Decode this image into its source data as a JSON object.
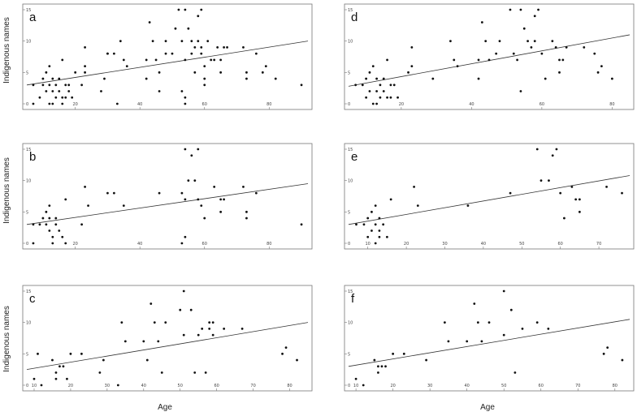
{
  "figure": {
    "ylabel": "Indigenous names",
    "xlabel": "Age"
  },
  "chart_data": [
    {
      "type": "scatter",
      "panel_label": "a",
      "xlim": [
        5,
        92
      ],
      "ylim": [
        0,
        15
      ],
      "xticks": [
        20,
        40,
        60,
        80
      ],
      "yticks": [
        0,
        5,
        10,
        15
      ],
      "trendline": {
        "x": [
          5,
          92
        ],
        "y": [
          3.0,
          10.0
        ]
      },
      "points": [
        [
          7,
          3
        ],
        [
          7,
          0
        ],
        [
          9,
          1
        ],
        [
          10,
          4
        ],
        [
          10,
          3
        ],
        [
          11,
          5
        ],
        [
          11,
          2
        ],
        [
          12,
          3
        ],
        [
          12,
          6
        ],
        [
          12,
          0
        ],
        [
          13,
          4
        ],
        [
          13,
          2
        ],
        [
          13,
          0
        ],
        [
          14,
          3
        ],
        [
          14,
          1
        ],
        [
          15,
          4
        ],
        [
          15,
          2
        ],
        [
          16,
          7
        ],
        [
          16,
          1
        ],
        [
          16,
          0
        ],
        [
          17,
          3
        ],
        [
          17,
          1
        ],
        [
          18,
          3
        ],
        [
          18,
          2
        ],
        [
          19,
          1
        ],
        [
          20,
          5
        ],
        [
          22,
          3
        ],
        [
          23,
          9
        ],
        [
          23,
          6
        ],
        [
          23,
          5
        ],
        [
          28,
          2
        ],
        [
          29,
          4
        ],
        [
          30,
          8
        ],
        [
          30,
          8
        ],
        [
          32,
          8
        ],
        [
          33,
          0
        ],
        [
          34,
          10
        ],
        [
          35,
          7
        ],
        [
          36,
          6
        ],
        [
          42,
          7
        ],
        [
          42,
          4
        ],
        [
          43,
          13
        ],
        [
          44,
          10
        ],
        [
          45,
          7
        ],
        [
          46,
          5
        ],
        [
          46,
          2
        ],
        [
          48,
          10
        ],
        [
          48,
          8
        ],
        [
          50,
          8
        ],
        [
          51,
          12
        ],
        [
          52,
          15
        ],
        [
          53,
          10
        ],
        [
          53,
          2
        ],
        [
          54,
          15
        ],
        [
          54,
          7
        ],
        [
          54,
          1
        ],
        [
          54,
          0
        ],
        [
          55,
          12
        ],
        [
          56,
          10
        ],
        [
          56,
          8
        ],
        [
          57,
          9
        ],
        [
          57,
          5
        ],
        [
          58,
          14
        ],
        [
          58,
          10
        ],
        [
          59,
          15
        ],
        [
          59,
          9
        ],
        [
          59,
          8
        ],
        [
          60,
          6
        ],
        [
          60,
          4
        ],
        [
          60,
          3
        ],
        [
          61,
          10
        ],
        [
          62,
          7
        ],
        [
          63,
          7
        ],
        [
          64,
          9
        ],
        [
          65,
          7
        ],
        [
          65,
          5
        ],
        [
          66,
          9
        ],
        [
          67,
          9
        ],
        [
          72,
          9
        ],
        [
          73,
          5
        ],
        [
          73,
          4
        ],
        [
          76,
          8
        ],
        [
          78,
          5
        ],
        [
          79,
          6
        ],
        [
          82,
          4
        ],
        [
          90,
          3
        ]
      ]
    },
    {
      "type": "scatter",
      "panel_label": "b",
      "xlim": [
        5,
        92
      ],
      "ylim": [
        0,
        15
      ],
      "xticks": [
        20,
        40,
        60,
        80
      ],
      "yticks": [
        0,
        5,
        10,
        15
      ],
      "trendline": {
        "x": [
          5,
          92
        ],
        "y": [
          3.0,
          9.5
        ]
      },
      "points": [
        [
          7,
          3
        ],
        [
          7,
          0
        ],
        [
          9,
          3
        ],
        [
          10,
          4
        ],
        [
          11,
          5
        ],
        [
          11,
          3
        ],
        [
          12,
          6
        ],
        [
          12,
          4
        ],
        [
          12,
          2
        ],
        [
          13,
          1
        ],
        [
          13,
          0
        ],
        [
          14,
          4
        ],
        [
          14,
          3
        ],
        [
          15,
          2
        ],
        [
          16,
          1
        ],
        [
          17,
          7
        ],
        [
          17,
          0
        ],
        [
          22,
          3
        ],
        [
          23,
          9
        ],
        [
          24,
          6
        ],
        [
          30,
          8
        ],
        [
          32,
          8
        ],
        [
          35,
          6
        ],
        [
          46,
          8
        ],
        [
          53,
          8
        ],
        [
          53,
          0
        ],
        [
          54,
          15
        ],
        [
          54,
          7
        ],
        [
          54,
          1
        ],
        [
          55,
          10
        ],
        [
          56,
          14
        ],
        [
          57,
          10
        ],
        [
          58,
          15
        ],
        [
          58,
          7
        ],
        [
          59,
          6
        ],
        [
          60,
          4
        ],
        [
          63,
          9
        ],
        [
          65,
          7
        ],
        [
          65,
          5
        ],
        [
          66,
          7
        ],
        [
          72,
          9
        ],
        [
          73,
          5
        ],
        [
          73,
          4
        ],
        [
          76,
          8
        ],
        [
          90,
          3
        ]
      ]
    },
    {
      "type": "scatter",
      "panel_label": "c",
      "xlim": [
        8,
        85
      ],
      "ylim": [
        0,
        15
      ],
      "xticks": [
        10,
        20,
        30,
        40,
        50,
        60,
        70,
        80
      ],
      "yticks": [
        0,
        5,
        10,
        15
      ],
      "trendline": {
        "x": [
          8,
          85
        ],
        "y": [
          2.5,
          10.0
        ]
      },
      "points": [
        [
          10,
          1
        ],
        [
          11,
          5
        ],
        [
          12,
          0
        ],
        [
          15,
          4
        ],
        [
          16,
          2
        ],
        [
          16,
          1
        ],
        [
          17,
          3
        ],
        [
          18,
          3
        ],
        [
          19,
          1
        ],
        [
          20,
          5
        ],
        [
          23,
          5
        ],
        [
          28,
          2
        ],
        [
          29,
          4
        ],
        [
          33,
          0
        ],
        [
          34,
          10
        ],
        [
          35,
          7
        ],
        [
          40,
          7
        ],
        [
          41,
          4
        ],
        [
          42,
          13
        ],
        [
          43,
          10
        ],
        [
          44,
          7
        ],
        [
          45,
          2
        ],
        [
          46,
          10
        ],
        [
          50,
          12
        ],
        [
          51,
          15
        ],
        [
          51,
          8
        ],
        [
          53,
          12
        ],
        [
          54,
          2
        ],
        [
          55,
          8
        ],
        [
          56,
          9
        ],
        [
          57,
          2
        ],
        [
          58,
          9
        ],
        [
          58,
          10
        ],
        [
          59,
          10
        ],
        [
          59,
          8
        ],
        [
          62,
          9
        ],
        [
          67,
          9
        ],
        [
          78,
          5
        ],
        [
          79,
          6
        ],
        [
          82,
          4
        ]
      ]
    },
    {
      "type": "scatter",
      "panel_label": "d",
      "xlim": [
        5,
        85
      ],
      "ylim": [
        0,
        15
      ],
      "xticks": [
        20,
        40,
        60,
        80
      ],
      "yticks": [
        0,
        5,
        10,
        15
      ],
      "trendline": {
        "x": [
          5,
          85
        ],
        "y": [
          2.8,
          11.0
        ]
      },
      "points": [
        [
          7,
          3
        ],
        [
          9,
          3
        ],
        [
          10,
          4
        ],
        [
          10,
          1
        ],
        [
          11,
          5
        ],
        [
          11,
          2
        ],
        [
          12,
          6
        ],
        [
          12,
          0
        ],
        [
          13,
          4
        ],
        [
          13,
          2
        ],
        [
          13,
          0
        ],
        [
          14,
          3
        ],
        [
          14,
          1
        ],
        [
          15,
          4
        ],
        [
          15,
          2
        ],
        [
          16,
          7
        ],
        [
          16,
          1
        ],
        [
          17,
          3
        ],
        [
          17,
          1
        ],
        [
          18,
          3
        ],
        [
          19,
          1
        ],
        [
          22,
          5
        ],
        [
          23,
          9
        ],
        [
          23,
          6
        ],
        [
          29,
          4
        ],
        [
          34,
          10
        ],
        [
          35,
          7
        ],
        [
          36,
          6
        ],
        [
          42,
          7
        ],
        [
          42,
          4
        ],
        [
          43,
          13
        ],
        [
          44,
          10
        ],
        [
          45,
          7
        ],
        [
          47,
          8
        ],
        [
          48,
          10
        ],
        [
          51,
          15
        ],
        [
          52,
          8
        ],
        [
          53,
          7
        ],
        [
          54,
          15
        ],
        [
          54,
          2
        ],
        [
          55,
          12
        ],
        [
          56,
          10
        ],
        [
          57,
          9
        ],
        [
          58,
          14
        ],
        [
          58,
          10
        ],
        [
          59,
          15
        ],
        [
          60,
          8
        ],
        [
          61,
          4
        ],
        [
          63,
          10
        ],
        [
          64,
          9
        ],
        [
          65,
          7
        ],
        [
          65,
          5
        ],
        [
          66,
          7
        ],
        [
          67,
          9
        ],
        [
          72,
          9
        ],
        [
          75,
          8
        ],
        [
          76,
          5
        ],
        [
          77,
          6
        ],
        [
          80,
          4
        ]
      ]
    },
    {
      "type": "scatter",
      "panel_label": "e",
      "xlim": [
        5,
        78
      ],
      "ylim": [
        0,
        15
      ],
      "xticks": [
        10,
        20,
        30,
        40,
        50,
        60,
        70
      ],
      "yticks": [
        0,
        5,
        10,
        15
      ],
      "trendline": {
        "x": [
          5,
          78
        ],
        "y": [
          3.0,
          10.8
        ]
      },
      "points": [
        [
          7,
          3
        ],
        [
          9,
          3
        ],
        [
          10,
          4
        ],
        [
          10,
          1
        ],
        [
          11,
          5
        ],
        [
          11,
          2
        ],
        [
          12,
          6
        ],
        [
          12,
          3
        ],
        [
          12,
          0
        ],
        [
          13,
          4
        ],
        [
          13,
          2
        ],
        [
          13,
          1
        ],
        [
          14,
          3
        ],
        [
          15,
          1
        ],
        [
          16,
          7
        ],
        [
          22,
          9
        ],
        [
          23,
          6
        ],
        [
          36,
          6
        ],
        [
          47,
          8
        ],
        [
          54,
          15
        ],
        [
          55,
          10
        ],
        [
          57,
          10
        ],
        [
          58,
          14
        ],
        [
          59,
          15
        ],
        [
          60,
          8
        ],
        [
          61,
          4
        ],
        [
          63,
          9
        ],
        [
          64,
          7
        ],
        [
          65,
          7
        ],
        [
          65,
          5
        ],
        [
          72,
          9
        ],
        [
          76,
          8
        ]
      ]
    },
    {
      "type": "scatter",
      "panel_label": "f",
      "xlim": [
        8,
        84
      ],
      "ylim": [
        0,
        15
      ],
      "xticks": [
        10,
        20,
        30,
        40,
        50,
        60,
        70,
        80
      ],
      "yticks": [
        0,
        5,
        10,
        15
      ],
      "trendline": {
        "x": [
          8,
          84
        ],
        "y": [
          3.0,
          10.5
        ]
      },
      "points": [
        [
          10,
          1
        ],
        [
          12,
          0
        ],
        [
          15,
          4
        ],
        [
          16,
          3
        ],
        [
          16,
          2
        ],
        [
          17,
          3
        ],
        [
          18,
          3
        ],
        [
          20,
          5
        ],
        [
          23,
          5
        ],
        [
          29,
          4
        ],
        [
          34,
          10
        ],
        [
          35,
          7
        ],
        [
          40,
          7
        ],
        [
          42,
          13
        ],
        [
          43,
          10
        ],
        [
          44,
          7
        ],
        [
          46,
          10
        ],
        [
          50,
          15
        ],
        [
          50,
          8
        ],
        [
          52,
          12
        ],
        [
          53,
          2
        ],
        [
          55,
          9
        ],
        [
          59,
          10
        ],
        [
          62,
          9
        ],
        [
          77,
          5
        ],
        [
          78,
          6
        ],
        [
          82,
          4
        ]
      ]
    }
  ]
}
